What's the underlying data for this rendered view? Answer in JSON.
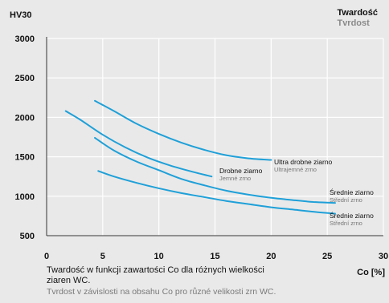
{
  "legend_title": {
    "primary": "Twardość",
    "secondary": "Tvrdost"
  },
  "caption": {
    "primary": "Twardość w funkcji zawartości Co dla różnych wielkości ziaren WC.",
    "secondary": "Tvrdost v závislosti na obsahu Co pro různé velikosti zrn WC."
  },
  "colors": {
    "background": "#e9e9e9",
    "grid": "#ffffff",
    "axis": "#333333",
    "series": "#1fa0d8"
  },
  "chart_data": {
    "type": "line",
    "ylabel": "HV30",
    "xlabel": "Co [%]",
    "xlim": [
      0,
      30
    ],
    "ylim": [
      500,
      3000
    ],
    "x_ticks": [
      0,
      5,
      10,
      15,
      20,
      25,
      30
    ],
    "y_ticks": [
      500,
      1000,
      1500,
      2000,
      2500,
      3000
    ],
    "grid": true,
    "series": [
      {
        "name": "Ultra drobne ziarno",
        "name_secondary": "Ultrajemné zrno",
        "x": [
          4.3,
          6,
          8,
          10,
          12,
          14,
          16,
          18,
          20
        ],
        "y": [
          2210,
          2080,
          1920,
          1790,
          1680,
          1590,
          1520,
          1480,
          1460
        ]
      },
      {
        "name": "Drobne ziarno",
        "name_secondary": "Jemné zrno",
        "x": [
          1.7,
          3,
          5,
          7,
          9,
          11,
          13,
          14.7
        ],
        "y": [
          2080,
          1970,
          1780,
          1620,
          1490,
          1390,
          1310,
          1250
        ]
      },
      {
        "name": "Średnie ziarno",
        "name_secondary": "Střední zrno",
        "x": [
          4.3,
          6,
          8,
          10,
          12,
          14,
          16,
          18,
          20,
          22,
          24,
          25.7
        ],
        "y": [
          1740,
          1580,
          1440,
          1330,
          1220,
          1140,
          1070,
          1020,
          980,
          950,
          925,
          915
        ]
      },
      {
        "name": "Średnie ziarno",
        "name_secondary": "Střední zrno",
        "x": [
          4.6,
          6,
          8,
          10,
          12,
          14,
          16,
          18,
          20,
          22,
          24,
          25.7
        ],
        "y": [
          1320,
          1250,
          1170,
          1100,
          1040,
          990,
          940,
          900,
          860,
          830,
          800,
          780
        ]
      }
    ]
  }
}
